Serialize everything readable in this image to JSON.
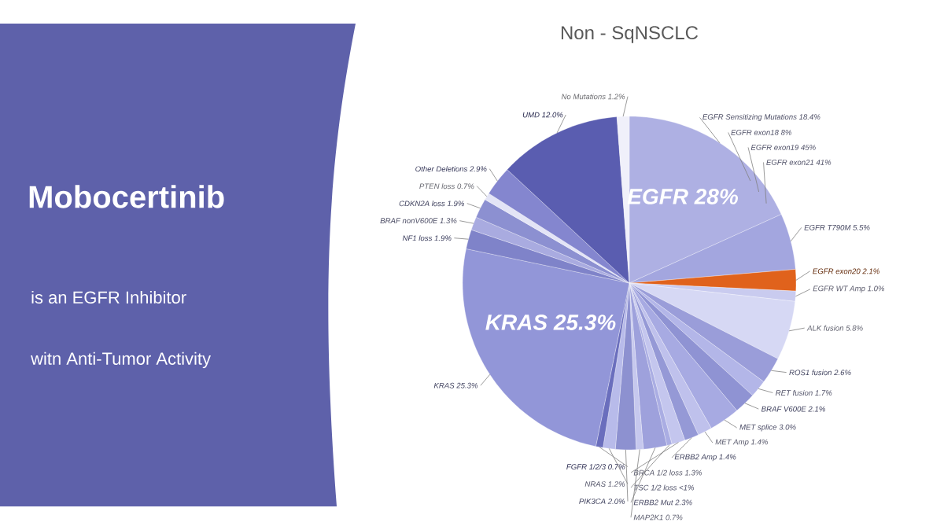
{
  "chart_data": {
    "type": "pie",
    "title": "Non - SqNSCLC",
    "categories": [
      "EGFR Sensitizing Mutations",
      "EGFR T790M",
      "EGFR exon20",
      "EGFR WT Amp",
      "ALK fusion",
      "ROS1 fusion",
      "RET fusion",
      "BRAF V600E",
      "MET splice",
      "MET Amp",
      "ERBB2 Amp",
      "BRCA 1/2 loss",
      "TSC 1/2 loss",
      "ERBB2 Mut",
      "MAP2K1",
      "PIK3CA",
      "NRAS",
      "FGFR 1/2/3",
      "KRAS",
      "NF1 loss",
      "BRAF nonV600E",
      "CDKN2A loss",
      "PTEN loss",
      "Other Deletions",
      "UMD",
      "No Mutations"
    ],
    "values": [
      18.4,
      5.5,
      2.1,
      1.0,
      5.8,
      2.6,
      1.7,
      2.1,
      3.0,
      1.4,
      1.4,
      1.3,
      0.5,
      2.3,
      0.7,
      2.0,
      1.2,
      0.7,
      25.3,
      1.9,
      1.3,
      1.9,
      0.7,
      2.9,
      12.0,
      1.2
    ],
    "value_labels": [
      "18.4%",
      "5.5%",
      "2.1%",
      "1.0%",
      "5.8%",
      "2.6%",
      "1.7%",
      "2.1%",
      "3.0%",
      "1.4%",
      "1.4%",
      "1.3%",
      "<1%",
      "2.3%",
      "0.7%",
      "2.0%",
      "1.2%",
      "0.7%",
      "25.3%",
      "1.9%",
      "1.3%",
      "1.9%",
      "0.7%",
      "2.9%",
      "12.0%",
      "1.2%"
    ],
    "colors": [
      "#aeb0e3",
      "#a3a6df",
      "#e0621c",
      "#c9cbef",
      "#d6d8f4",
      "#9a9dd9",
      "#b3b6e8",
      "#8f93d3",
      "#a7aae2",
      "#bfc1ec",
      "#9599d6",
      "#c4c6ee",
      "#aaade3",
      "#9ea1dc",
      "#c6c8ee",
      "#8d91d0",
      "#b8bbea",
      "#6a6ebd",
      "#9296d8",
      "#7f83c9",
      "#a9abe0",
      "#8c90d1",
      "#e3e4f6",
      "#8486cf",
      "#5a5db0",
      "#f0f0fa"
    ],
    "annotations": [
      "Mobocertinib",
      "is an EGFR Inhibitor",
      "witn Anti-Tumor Activity",
      "EGFR 28%",
      "KRAS 25.3%",
      "EGFR exon18 8%",
      "EGFR exon19 45%",
      "EGFR exon21 41%"
    ]
  }
}
